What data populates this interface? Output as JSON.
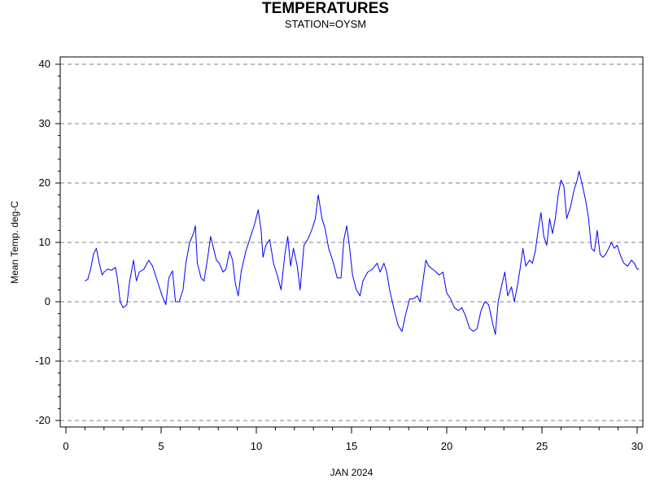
{
  "chart_data": {
    "type": "line",
    "title": "TEMPERATURES",
    "subtitle": "STATION=OYSM",
    "xlabel": "JAN 2024",
    "ylabel": "Mean Temp. deg-C",
    "xlim": [
      0,
      30
    ],
    "ylim": [
      -20,
      40
    ],
    "xticks": [
      0,
      5,
      10,
      15,
      20,
      25,
      30
    ],
    "yticks": [
      -20,
      -10,
      0,
      10,
      20,
      30,
      40
    ],
    "grid": "horizontal dashed",
    "series": [
      {
        "color": "#0000ff",
        "points": [
          [
            1.0,
            3.5
          ],
          [
            1.15,
            3.8
          ],
          [
            1.3,
            5.5
          ],
          [
            1.45,
            8.0
          ],
          [
            1.6,
            9.0
          ],
          [
            1.75,
            6.5
          ],
          [
            1.9,
            4.5
          ],
          [
            2.0,
            5.0
          ],
          [
            2.2,
            5.5
          ],
          [
            2.4,
            5.3
          ],
          [
            2.6,
            5.8
          ],
          [
            2.7,
            4.0
          ],
          [
            2.85,
            0.0
          ],
          [
            3.0,
            -1.0
          ],
          [
            3.2,
            -0.5
          ],
          [
            3.35,
            3.5
          ],
          [
            3.55,
            7.0
          ],
          [
            3.7,
            3.5
          ],
          [
            3.85,
            5.0
          ],
          [
            4.1,
            5.5
          ],
          [
            4.35,
            7.0
          ],
          [
            4.55,
            6.0
          ],
          [
            4.8,
            3.5
          ],
          [
            5.05,
            1.0
          ],
          [
            5.25,
            -0.5
          ],
          [
            5.4,
            4.0
          ],
          [
            5.6,
            5.2
          ],
          [
            5.75,
            0.0
          ],
          [
            5.95,
            0.0
          ],
          [
            6.15,
            2.0
          ],
          [
            6.3,
            6.5
          ],
          [
            6.5,
            10.0
          ],
          [
            6.7,
            11.5
          ],
          [
            6.8,
            12.8
          ],
          [
            6.9,
            6.5
          ],
          [
            7.1,
            4.0
          ],
          [
            7.25,
            3.5
          ],
          [
            7.45,
            7.5
          ],
          [
            7.6,
            11.0
          ],
          [
            7.75,
            9.0
          ],
          [
            7.9,
            7.0
          ],
          [
            8.05,
            6.5
          ],
          [
            8.25,
            5.0
          ],
          [
            8.4,
            5.5
          ],
          [
            8.6,
            8.5
          ],
          [
            8.75,
            7.0
          ],
          [
            8.9,
            3.0
          ],
          [
            9.05,
            1.0
          ],
          [
            9.2,
            5.0
          ],
          [
            9.45,
            8.5
          ],
          [
            9.7,
            11.0
          ],
          [
            9.9,
            13.0
          ],
          [
            10.1,
            15.5
          ],
          [
            10.25,
            12.0
          ],
          [
            10.35,
            7.5
          ],
          [
            10.5,
            9.5
          ],
          [
            10.7,
            10.5
          ],
          [
            10.9,
            6.5
          ],
          [
            11.1,
            4.5
          ],
          [
            11.3,
            2.0
          ],
          [
            11.5,
            8.0
          ],
          [
            11.65,
            11.0
          ],
          [
            11.8,
            6.0
          ],
          [
            11.95,
            9.0
          ],
          [
            12.15,
            6.0
          ],
          [
            12.3,
            2.0
          ],
          [
            12.5,
            9.5
          ],
          [
            12.7,
            10.5
          ],
          [
            12.9,
            12.0
          ],
          [
            13.1,
            14.0
          ],
          [
            13.25,
            18.0
          ],
          [
            13.45,
            14.0
          ],
          [
            13.6,
            12.5
          ],
          [
            13.8,
            9.0
          ],
          [
            14.05,
            6.5
          ],
          [
            14.25,
            4.0
          ],
          [
            14.45,
            4.0
          ],
          [
            14.6,
            10.5
          ],
          [
            14.75,
            12.8
          ],
          [
            14.9,
            9.0
          ],
          [
            15.05,
            4.5
          ],
          [
            15.25,
            2.0
          ],
          [
            15.45,
            1.0
          ],
          [
            15.6,
            3.5
          ],
          [
            15.85,
            5.0
          ],
          [
            16.1,
            5.5
          ],
          [
            16.35,
            6.5
          ],
          [
            16.5,
            5.0
          ],
          [
            16.7,
            6.5
          ],
          [
            16.85,
            5.0
          ],
          [
            17.0,
            2.0
          ],
          [
            17.25,
            -1.5
          ],
          [
            17.45,
            -4.0
          ],
          [
            17.65,
            -5.0
          ],
          [
            17.85,
            -2.0
          ],
          [
            18.05,
            0.5
          ],
          [
            18.25,
            0.5
          ],
          [
            18.45,
            1.0
          ],
          [
            18.6,
            0.0
          ],
          [
            18.75,
            3.5
          ],
          [
            18.9,
            7.0
          ],
          [
            19.05,
            6.0
          ],
          [
            19.25,
            5.5
          ],
          [
            19.45,
            5.0
          ],
          [
            19.6,
            4.5
          ],
          [
            19.8,
            5.0
          ],
          [
            20.0,
            1.5
          ],
          [
            20.2,
            0.5
          ],
          [
            20.4,
            -1.0
          ],
          [
            20.6,
            -1.5
          ],
          [
            20.8,
            -1.0
          ],
          [
            21.0,
            -2.5
          ],
          [
            21.2,
            -4.5
          ],
          [
            21.4,
            -5.0
          ],
          [
            21.6,
            -4.5
          ],
          [
            21.8,
            -1.5
          ],
          [
            22.0,
            0.0
          ],
          [
            22.2,
            -0.5
          ],
          [
            22.4,
            -3.5
          ],
          [
            22.55,
            -5.5
          ],
          [
            22.7,
            0.0
          ],
          [
            22.9,
            3.0
          ],
          [
            23.05,
            5.0
          ],
          [
            23.2,
            1.0
          ],
          [
            23.4,
            2.5
          ],
          [
            23.55,
            0.0
          ],
          [
            23.7,
            2.5
          ],
          [
            23.85,
            5.5
          ],
          [
            24.0,
            9.0
          ],
          [
            24.15,
            6.0
          ],
          [
            24.35,
            7.0
          ],
          [
            24.5,
            6.5
          ],
          [
            24.65,
            8.5
          ],
          [
            24.8,
            12.0
          ],
          [
            24.95,
            15.0
          ],
          [
            25.1,
            11.0
          ],
          [
            25.25,
            9.5
          ],
          [
            25.4,
            14.0
          ],
          [
            25.55,
            11.5
          ],
          [
            25.7,
            14.0
          ],
          [
            25.85,
            18.0
          ],
          [
            26.0,
            20.5
          ],
          [
            26.15,
            19.5
          ],
          [
            26.3,
            14.0
          ],
          [
            26.5,
            16.0
          ],
          [
            26.7,
            19.0
          ],
          [
            26.85,
            20.5
          ],
          [
            26.95,
            22.0
          ],
          [
            27.1,
            20.0
          ],
          [
            27.3,
            17.0
          ],
          [
            27.45,
            14.0
          ],
          [
            27.6,
            9.0
          ],
          [
            27.75,
            8.5
          ],
          [
            27.9,
            12.0
          ],
          [
            28.05,
            8.0
          ],
          [
            28.2,
            7.5
          ],
          [
            28.35,
            8.0
          ],
          [
            28.5,
            9.0
          ],
          [
            28.65,
            10.0
          ],
          [
            28.8,
            9.0
          ],
          [
            28.95,
            9.5
          ],
          [
            29.1,
            8.0
          ],
          [
            29.3,
            6.5
          ],
          [
            29.5,
            6.0
          ],
          [
            29.7,
            7.0
          ],
          [
            29.85,
            6.5
          ],
          [
            30.0,
            5.5
          ],
          [
            30.1,
            5.5
          ]
        ]
      }
    ]
  }
}
